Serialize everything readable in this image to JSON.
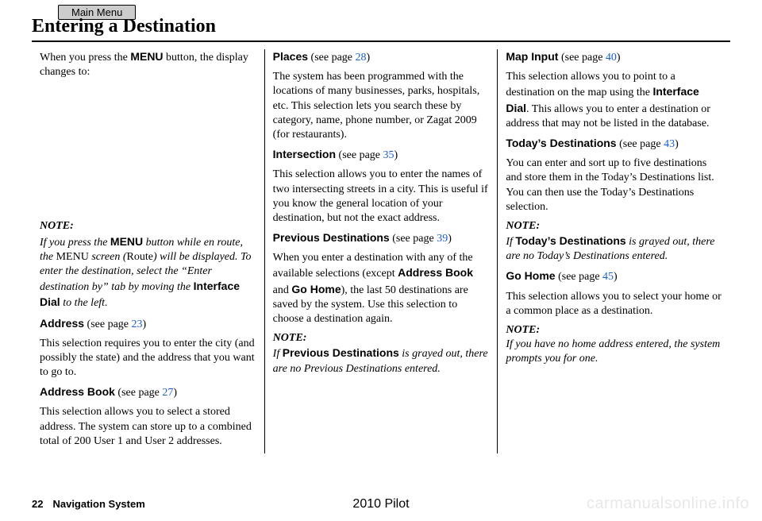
{
  "menu_tab": "Main Menu",
  "header": "Entering a Destination",
  "col1": {
    "intro_a": "When you press the ",
    "intro_b": "MENU",
    "intro_c": " button, the display changes to:",
    "note_label": "NOTE:",
    "note_a": "If you press the ",
    "note_b": "MENU",
    "note_c": " button while en route, the ",
    "note_d": "MENU",
    "note_e": " screen (",
    "note_f": "Route",
    "note_g": ") will be displayed. To enter the destination, select the “Enter destination by” tab by moving the ",
    "note_h": "Interface Dial",
    "note_i": " to the left.",
    "address_title": "Address",
    "address_seepage": " (see page ",
    "address_page": "23",
    "address_close": ")",
    "address_body": "This selection requires you to enter the city (and possibly the state) and the address that you want to go to.",
    "abook_title": "Address Book",
    "abook_seepage": " (see page ",
    "abook_page": "27",
    "abook_close": ")",
    "abook_body": "This selection allows you to select a stored address. The system can store up to a combined total of 200 User 1 and User 2 addresses."
  },
  "col2": {
    "places_title": "Places",
    "places_seepage": " (see page ",
    "places_page": "28",
    "places_close": ")",
    "places_body": "The system has been programmed with the locations of many businesses, parks, hospitals, etc. This selection lets you search these by category, name, phone number, or Zagat 2009 (for restaurants).",
    "inter_title": "Intersection",
    "inter_seepage": " (see page ",
    "inter_page": "35",
    "inter_close": ")",
    "inter_body": "This selection allows you to enter the names of two intersecting streets in a city. This is useful if you know the general location of your destination, but not the exact address.",
    "prev_title": "Previous Destinations",
    "prev_seepage": " (see page ",
    "prev_page": "39",
    "prev_close": ")",
    "prev_a": "When you enter a destination with any of the available selections (except ",
    "prev_b": "Address Book",
    "prev_c": " and ",
    "prev_d": "Go Home",
    "prev_e": "), the last 50 destinations are saved by the system. Use this selection to choose a destination again.",
    "note_label": "NOTE:",
    "note_a": "If ",
    "note_b": "Previous Destinations",
    "note_c": " is grayed out, there are no Previous Destinations entered."
  },
  "col3": {
    "map_title": "Map Input",
    "map_seepage": " (see page ",
    "map_page": "40",
    "map_close": ")",
    "map_a": "This selection allows you to point to a destination on the map using the ",
    "map_b": "Interface Dial",
    "map_c": ". This allows you to enter a destination or address that may not be listed in the database.",
    "today_title": "Today’s Destinations",
    "today_seepage": " (see page ",
    "today_page": "43",
    "today_close": ")",
    "today_body": "You can enter and sort up to five destinations and store them in the Today’s Destinations list. You can then use the Today’s Destinations selection.",
    "note1_label": "NOTE:",
    "note1_a": "If ",
    "note1_b": "Today’s Destinations",
    "note1_c": " is grayed out, there are no Today’s Destinations entered.",
    "go_title": "Go Home",
    "go_seepage": " (see page ",
    "go_page": "45",
    "go_close": ")",
    "go_body": "This selection allows you to select your home or a common place as a destination.",
    "note2_label": "NOTE:",
    "note2_body": "If you have no home address entered, the system prompts you for one."
  },
  "footer": {
    "page": "22",
    "section": "Navigation System",
    "model": "2010 Pilot",
    "watermark": "carmanualsonline.info"
  }
}
